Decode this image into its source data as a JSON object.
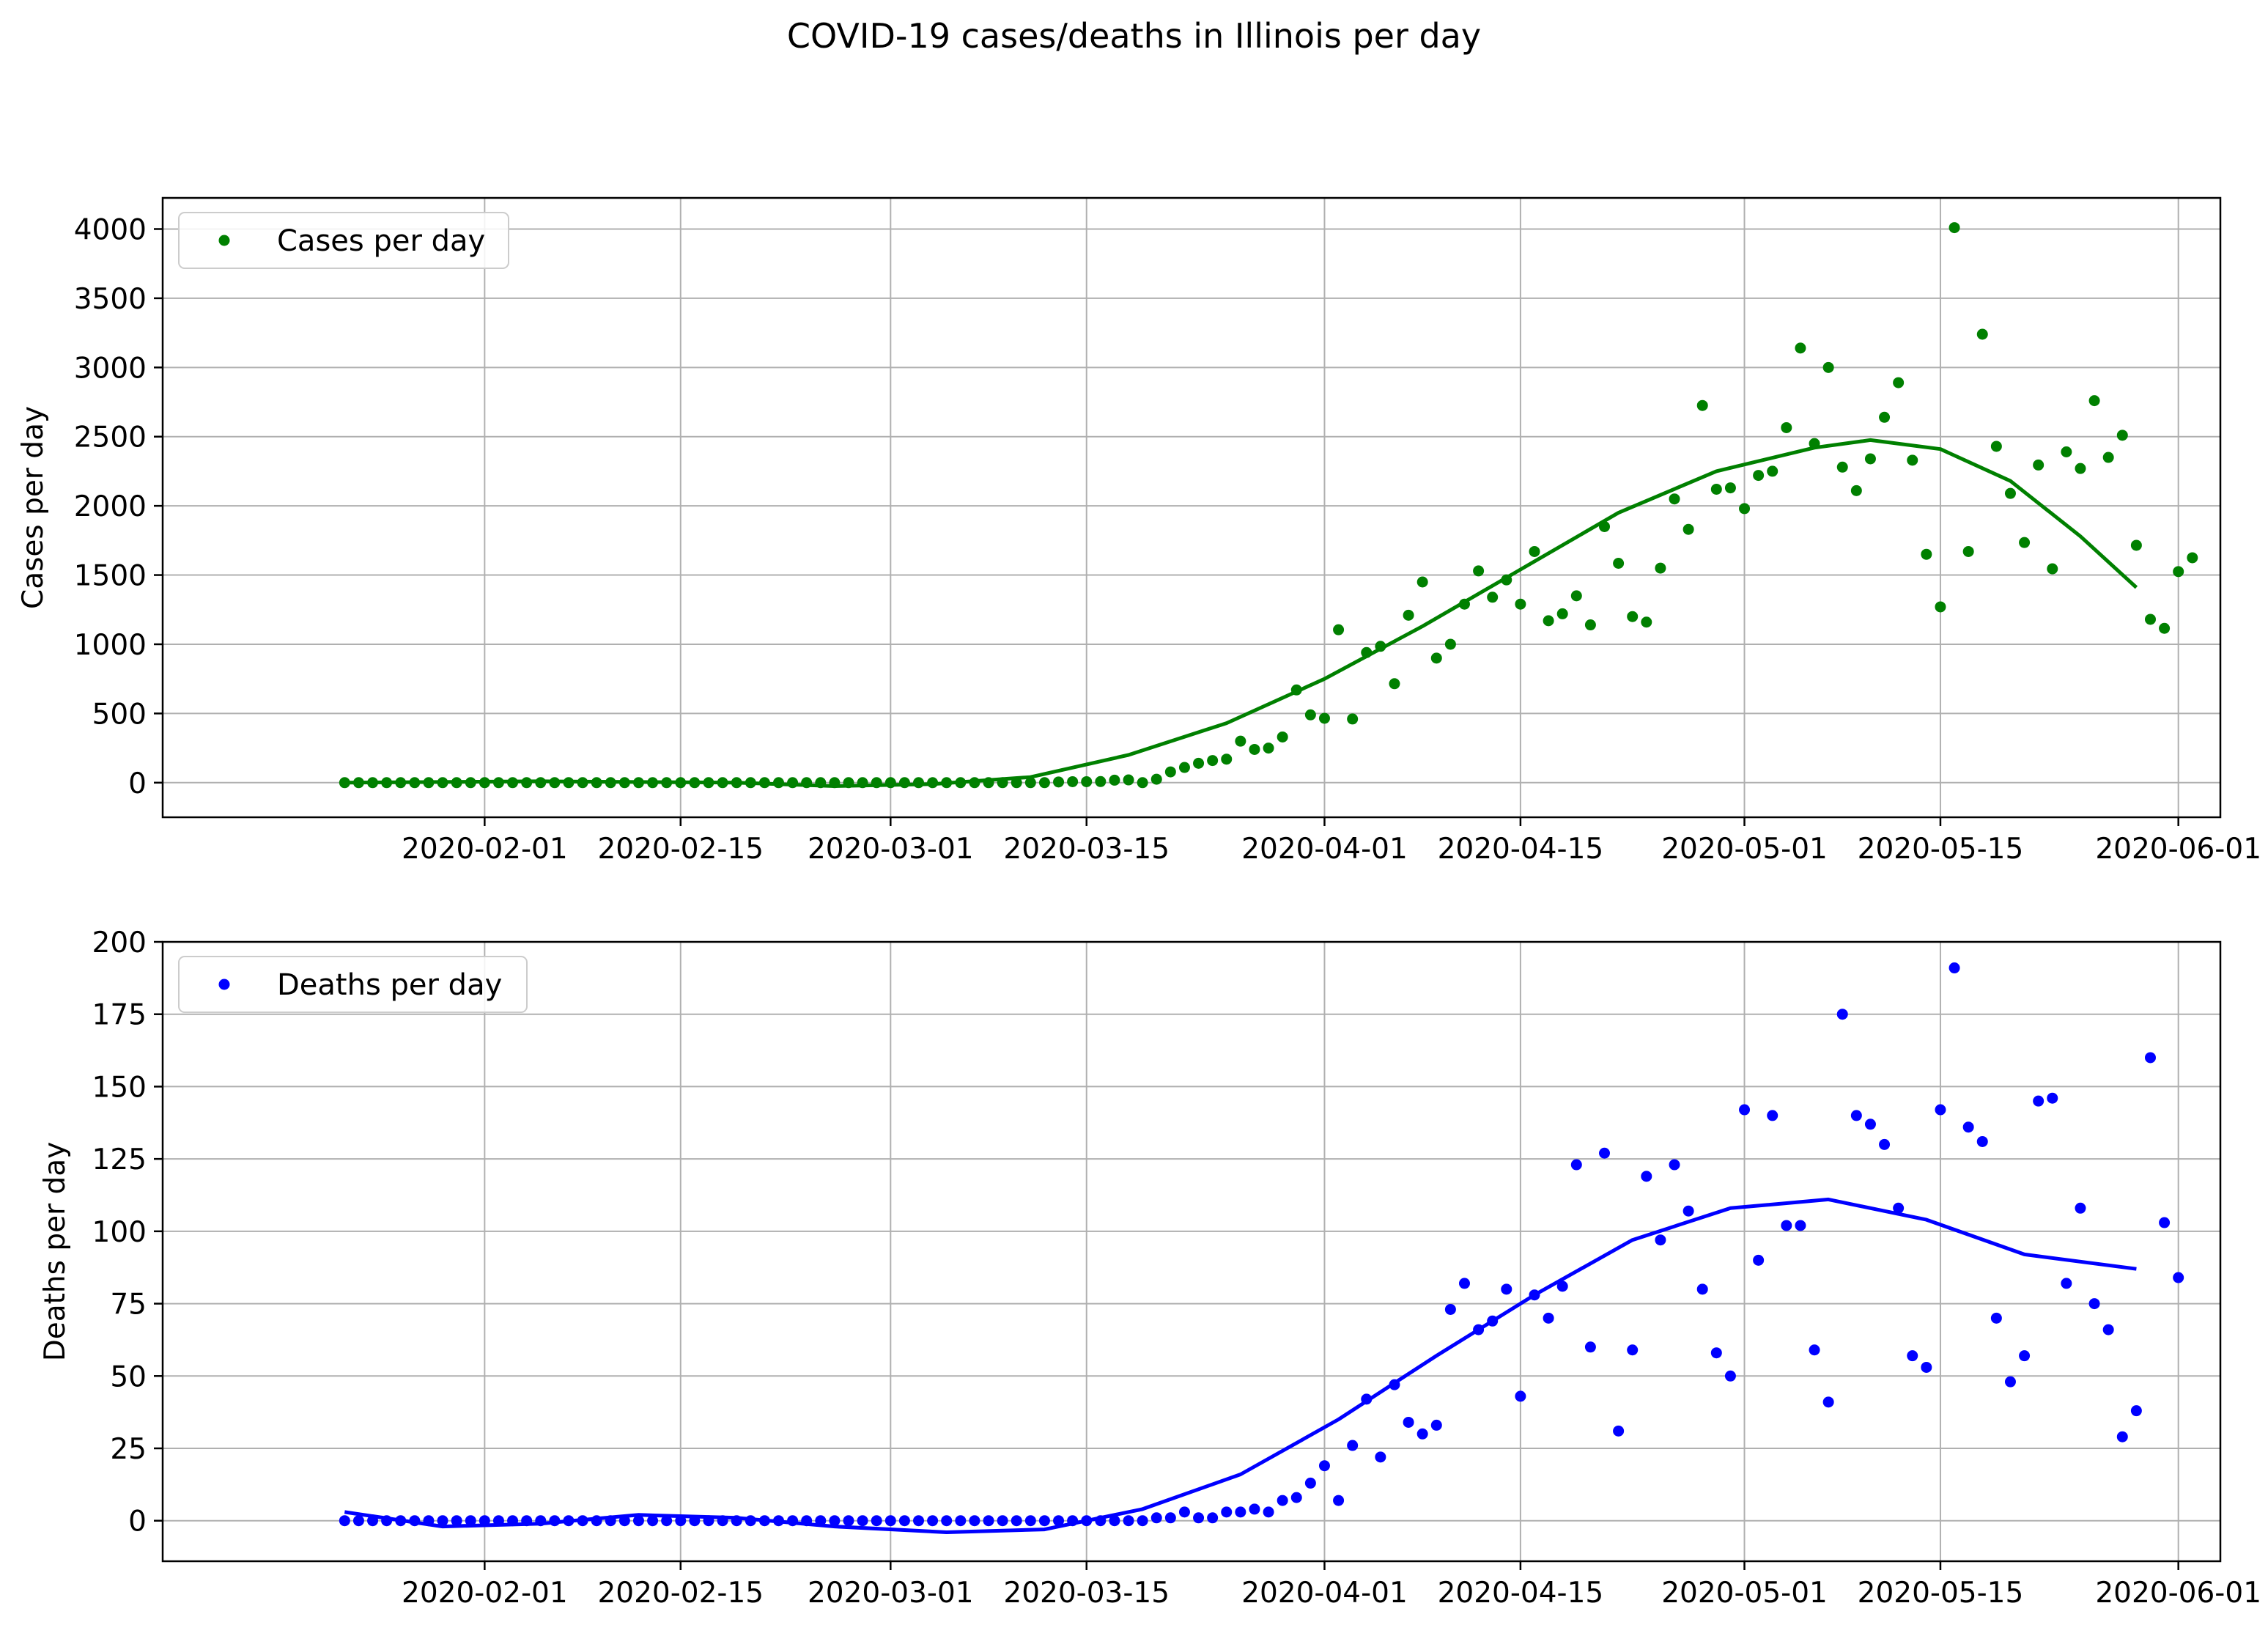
{
  "figure": {
    "title": "COVID-19 cases/deaths in Illinois per day"
  },
  "chart_data": [
    {
      "type": "scatter",
      "ylabel": "Cases per day",
      "xlabel": "",
      "xlim": [
        "2020-01-09",
        "2020-06-04"
      ],
      "ylim": [
        -250,
        4225
      ],
      "x_ticks": [
        "2020-02-01",
        "2020-02-15",
        "2020-03-01",
        "2020-03-15",
        "2020-04-01",
        "2020-04-15",
        "2020-05-01",
        "2020-05-15",
        "2020-06-01"
      ],
      "y_ticks": [
        0,
        500,
        1000,
        1500,
        2000,
        2500,
        3000,
        3500,
        4000
      ],
      "grid": true,
      "legend": "upper-left",
      "color": "#008000",
      "series": [
        {
          "name": "Cases per day",
          "kind": "points",
          "start_date": "2020-01-22",
          "values": [
            0,
            0,
            0,
            0,
            0,
            0,
            0,
            0,
            0,
            0,
            0,
            0,
            0,
            0,
            0,
            0,
            0,
            0,
            0,
            0,
            0,
            0,
            0,
            0,
            0,
            0,
            0,
            0,
            0,
            0,
            0,
            0,
            0,
            0,
            0,
            0,
            0,
            0,
            0,
            0,
            0,
            0,
            0,
            0,
            0,
            0,
            0,
            0,
            0,
            0,
            0,
            5,
            7,
            7,
            8,
            18,
            20,
            0,
            25,
            78,
            110,
            140,
            160,
            170,
            300,
            240,
            250,
            330,
            670,
            490,
            465,
            1105,
            460,
            940,
            985,
            715,
            1210,
            1450,
            900,
            1000,
            1290,
            1530,
            1340,
            1465,
            1290,
            1670,
            1170,
            1220,
            1350,
            1140,
            1850,
            1585,
            1200,
            1160,
            1550,
            2050,
            1830,
            2725,
            2120,
            2130,
            1980,
            2220,
            2250,
            2565,
            3140,
            2450,
            3000,
            2280,
            2110,
            2340,
            2640,
            2890,
            2330,
            1650,
            1270,
            4010,
            1670,
            3240,
            2430,
            2090,
            1735,
            2295,
            1545,
            2390,
            2270,
            2760,
            2350,
            2510,
            1715,
            1180,
            1115,
            1525,
            1625
          ]
        },
        {
          "name": "",
          "kind": "fit",
          "x": [
            "2020-01-22",
            "2020-02-05",
            "2020-02-19",
            "2020-02-26",
            "2020-03-04",
            "2020-03-11",
            "2020-03-18",
            "2020-03-25",
            "2020-04-01",
            "2020-04-08",
            "2020-04-15",
            "2020-04-22",
            "2020-04-29",
            "2020-05-06",
            "2020-05-10",
            "2020-05-15",
            "2020-05-20",
            "2020-05-25",
            "2020-05-29"
          ],
          "y": [
            0,
            10,
            0,
            -25,
            -10,
            40,
            200,
            430,
            750,
            1130,
            1540,
            1950,
            2250,
            2420,
            2475,
            2410,
            2180,
            1780,
            1410
          ]
        }
      ]
    },
    {
      "type": "scatter",
      "ylabel": "Deaths per day",
      "xlabel": "",
      "xlim": [
        "2020-01-09",
        "2020-06-04"
      ],
      "ylim": [
        -14,
        200
      ],
      "x_ticks": [
        "2020-02-01",
        "2020-02-15",
        "2020-03-01",
        "2020-03-15",
        "2020-04-01",
        "2020-04-15",
        "2020-05-01",
        "2020-05-15",
        "2020-06-01"
      ],
      "y_ticks": [
        0,
        25,
        50,
        75,
        100,
        125,
        150,
        175,
        200
      ],
      "grid": true,
      "legend": "upper-left",
      "color": "#0000ff",
      "series": [
        {
          "name": "Deaths per day",
          "kind": "points",
          "start_date": "2020-01-22",
          "values": [
            0,
            0,
            0,
            0,
            0,
            0,
            0,
            0,
            0,
            0,
            0,
            0,
            0,
            0,
            0,
            0,
            0,
            0,
            0,
            0,
            0,
            0,
            0,
            0,
            0,
            0,
            0,
            0,
            0,
            0,
            0,
            0,
            0,
            0,
            0,
            0,
            0,
            0,
            0,
            0,
            0,
            0,
            0,
            0,
            0,
            0,
            0,
            0,
            0,
            0,
            0,
            0,
            0,
            0,
            0,
            0,
            0,
            0,
            1,
            1,
            3,
            1,
            1,
            3,
            3,
            4,
            3,
            7,
            8,
            13,
            19,
            7,
            26,
            42,
            22,
            47,
            34,
            30,
            33,
            73,
            82,
            66,
            69,
            80,
            43,
            78,
            70,
            81,
            123,
            60,
            127,
            31,
            59,
            119,
            97,
            123,
            107,
            80,
            58,
            50,
            142,
            90,
            140,
            102,
            102,
            59,
            41,
            175,
            140,
            137,
            130,
            108,
            57,
            53,
            142,
            191,
            136,
            131,
            70,
            48,
            57,
            145,
            146,
            82,
            108,
            75,
            66,
            29,
            38,
            160,
            103,
            84
          ]
        },
        {
          "name": "",
          "kind": "fit",
          "x": [
            "2020-01-22",
            "2020-01-29",
            "2020-02-05",
            "2020-02-12",
            "2020-02-19",
            "2020-02-26",
            "2020-03-05",
            "2020-03-12",
            "2020-03-19",
            "2020-03-26",
            "2020-04-02",
            "2020-04-09",
            "2020-04-16",
            "2020-04-23",
            "2020-04-30",
            "2020-05-07",
            "2020-05-14",
            "2020-05-21",
            "2020-05-29"
          ],
          "y": [
            3,
            -2,
            -1,
            2,
            1,
            -2,
            -4,
            -3,
            4,
            16,
            35,
            57,
            78,
            97,
            108,
            111,
            104,
            92,
            87
          ]
        }
      ]
    }
  ]
}
